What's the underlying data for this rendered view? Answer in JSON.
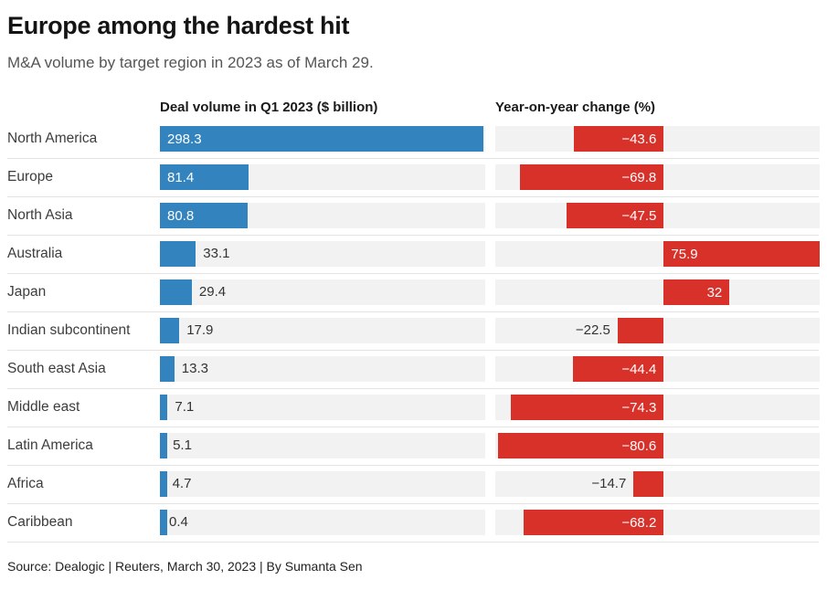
{
  "page": {
    "title": "Europe among the hardest hit",
    "subtitle": "M&A volume by target region in 2023 as of March 29.",
    "source": "Source: Dealogic | Reuters, March 30, 2023 | By Sumanta Sen"
  },
  "colors": {
    "blue": "#3383be",
    "red": "#d7312a",
    "track": "#f2f2f2",
    "separator": "#e4e4e4"
  },
  "chart_data": {
    "type": "bar",
    "title": "Europe among the hardest hit",
    "subtitle": "M&A volume by target region in 2023 as of March 29.",
    "columns": [
      "Deal volume in Q1 2023 ($ billion)",
      "Year-on-year change (%)"
    ],
    "legend_position": "none",
    "grid": false,
    "volume_axis": {
      "min": 0,
      "max": 300
    },
    "yoy_axis": {
      "min": -82,
      "max": 75.9
    },
    "rows": [
      {
        "region": "North America",
        "volume": 298.3,
        "volume_label": "298.3",
        "yoy": -43.6,
        "yoy_label": "−43.6",
        "vol_label_pos": "inside",
        "yoy_label_pos": "inside-right"
      },
      {
        "region": "Europe",
        "volume": 81.4,
        "volume_label": "81.4",
        "yoy": -69.8,
        "yoy_label": "−69.8",
        "vol_label_pos": "inside",
        "yoy_label_pos": "inside-right"
      },
      {
        "region": "North Asia",
        "volume": 80.8,
        "volume_label": "80.8",
        "yoy": -47.5,
        "yoy_label": "−47.5",
        "vol_label_pos": "inside",
        "yoy_label_pos": "inside-right"
      },
      {
        "region": "Australia",
        "volume": 33.1,
        "volume_label": "33.1",
        "yoy": 75.9,
        "yoy_label": "75.9",
        "vol_label_pos": "outside",
        "yoy_label_pos": "inside-left"
      },
      {
        "region": "Japan",
        "volume": 29.4,
        "volume_label": "29.4",
        "yoy": 32,
        "yoy_label": "32",
        "vol_label_pos": "outside",
        "yoy_label_pos": "inside-right"
      },
      {
        "region": "Indian subcontinent",
        "volume": 17.9,
        "volume_label": "17.9",
        "yoy": -22.5,
        "yoy_label": "−22.5",
        "vol_label_pos": "outside",
        "yoy_label_pos": "outside-left"
      },
      {
        "region": "South east Asia",
        "volume": 13.3,
        "volume_label": "13.3",
        "yoy": -44.4,
        "yoy_label": "−44.4",
        "vol_label_pos": "outside",
        "yoy_label_pos": "inside-right"
      },
      {
        "region": "Middle east",
        "volume": 7.1,
        "volume_label": "7.1",
        "yoy": -74.3,
        "yoy_label": "−74.3",
        "vol_label_pos": "outside",
        "yoy_label_pos": "inside-right"
      },
      {
        "region": "Latin America",
        "volume": 5.1,
        "volume_label": "5.1",
        "yoy": -80.6,
        "yoy_label": "−80.6",
        "vol_label_pos": "outside",
        "yoy_label_pos": "inside-right"
      },
      {
        "region": "Africa",
        "volume": 4.7,
        "volume_label": "4.7",
        "yoy": -14.7,
        "yoy_label": "−14.7",
        "vol_label_pos": "outside",
        "yoy_label_pos": "outside-left"
      },
      {
        "region": "Caribbean",
        "volume": 0.4,
        "volume_label": "0.4",
        "yoy": -68.2,
        "yoy_label": "−68.2",
        "vol_label_pos": "outside",
        "yoy_label_pos": "inside-right"
      }
    ]
  }
}
